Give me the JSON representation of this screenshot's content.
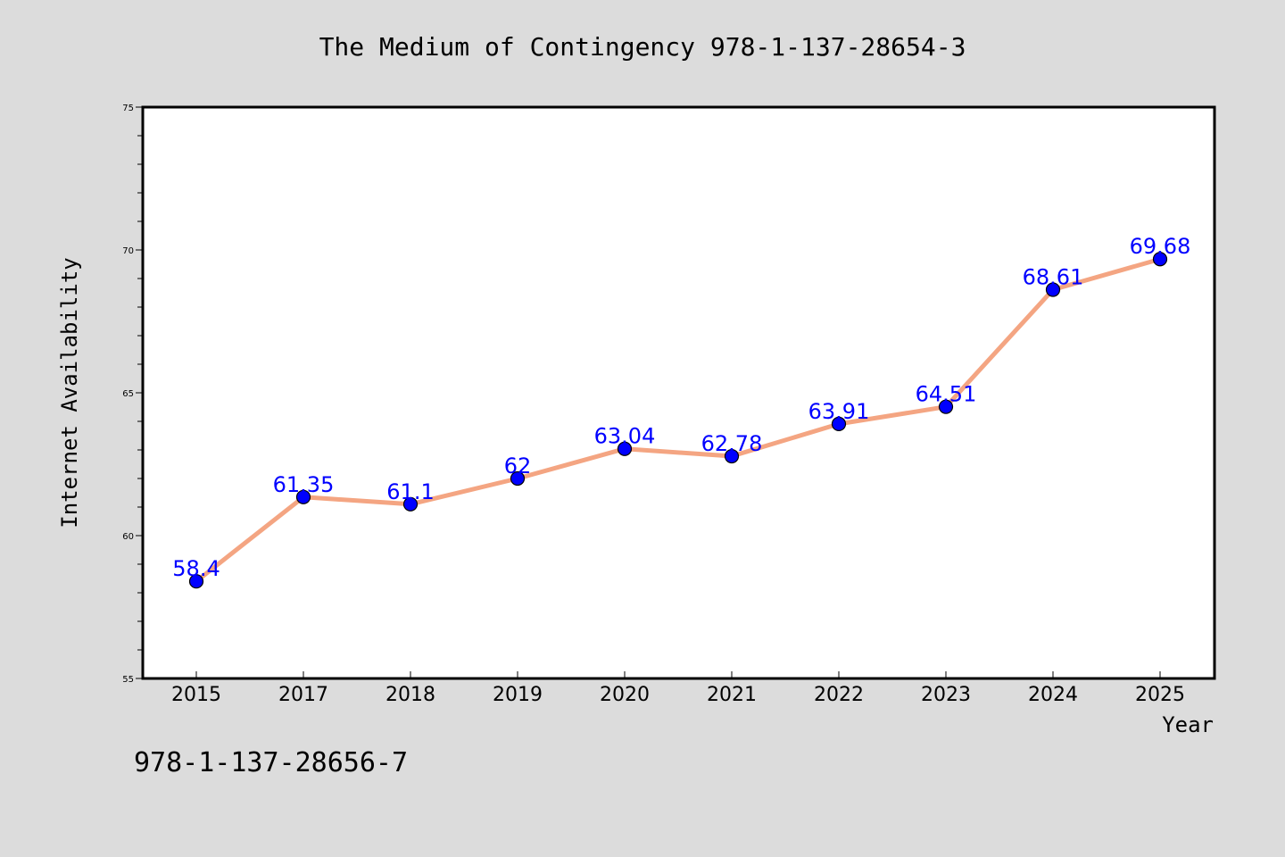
{
  "chart_data": {
    "type": "line",
    "title": "The Medium of Contingency 978-1-137-28654-3",
    "xlabel": "Year",
    "ylabel": "Internet Availability",
    "footnote": "978-1-137-28656-7",
    "categories": [
      "2015",
      "2017",
      "2018",
      "2019",
      "2020",
      "2021",
      "2022",
      "2023",
      "2024",
      "2025"
    ],
    "values": [
      58.4,
      61.35,
      61.1,
      62,
      63.04,
      62.78,
      63.91,
      64.51,
      68.61,
      69.68
    ],
    "data_labels": [
      "58.4",
      "61.35",
      "61.1",
      "62",
      "63.04",
      "62.78",
      "63.91",
      "64.51",
      "68.61",
      "69.68"
    ],
    "ylim": [
      55,
      75
    ],
    "y_ticks": [
      "55",
      "60",
      "65",
      "70",
      "75"
    ],
    "grid": false,
    "colors": {
      "line": "#f4a582",
      "marker": "#0000ff",
      "marker_edge": "#000000",
      "data_label": "#0000ff",
      "plot_background": "#ffffff",
      "figure_background": "#dcdcdc"
    }
  }
}
